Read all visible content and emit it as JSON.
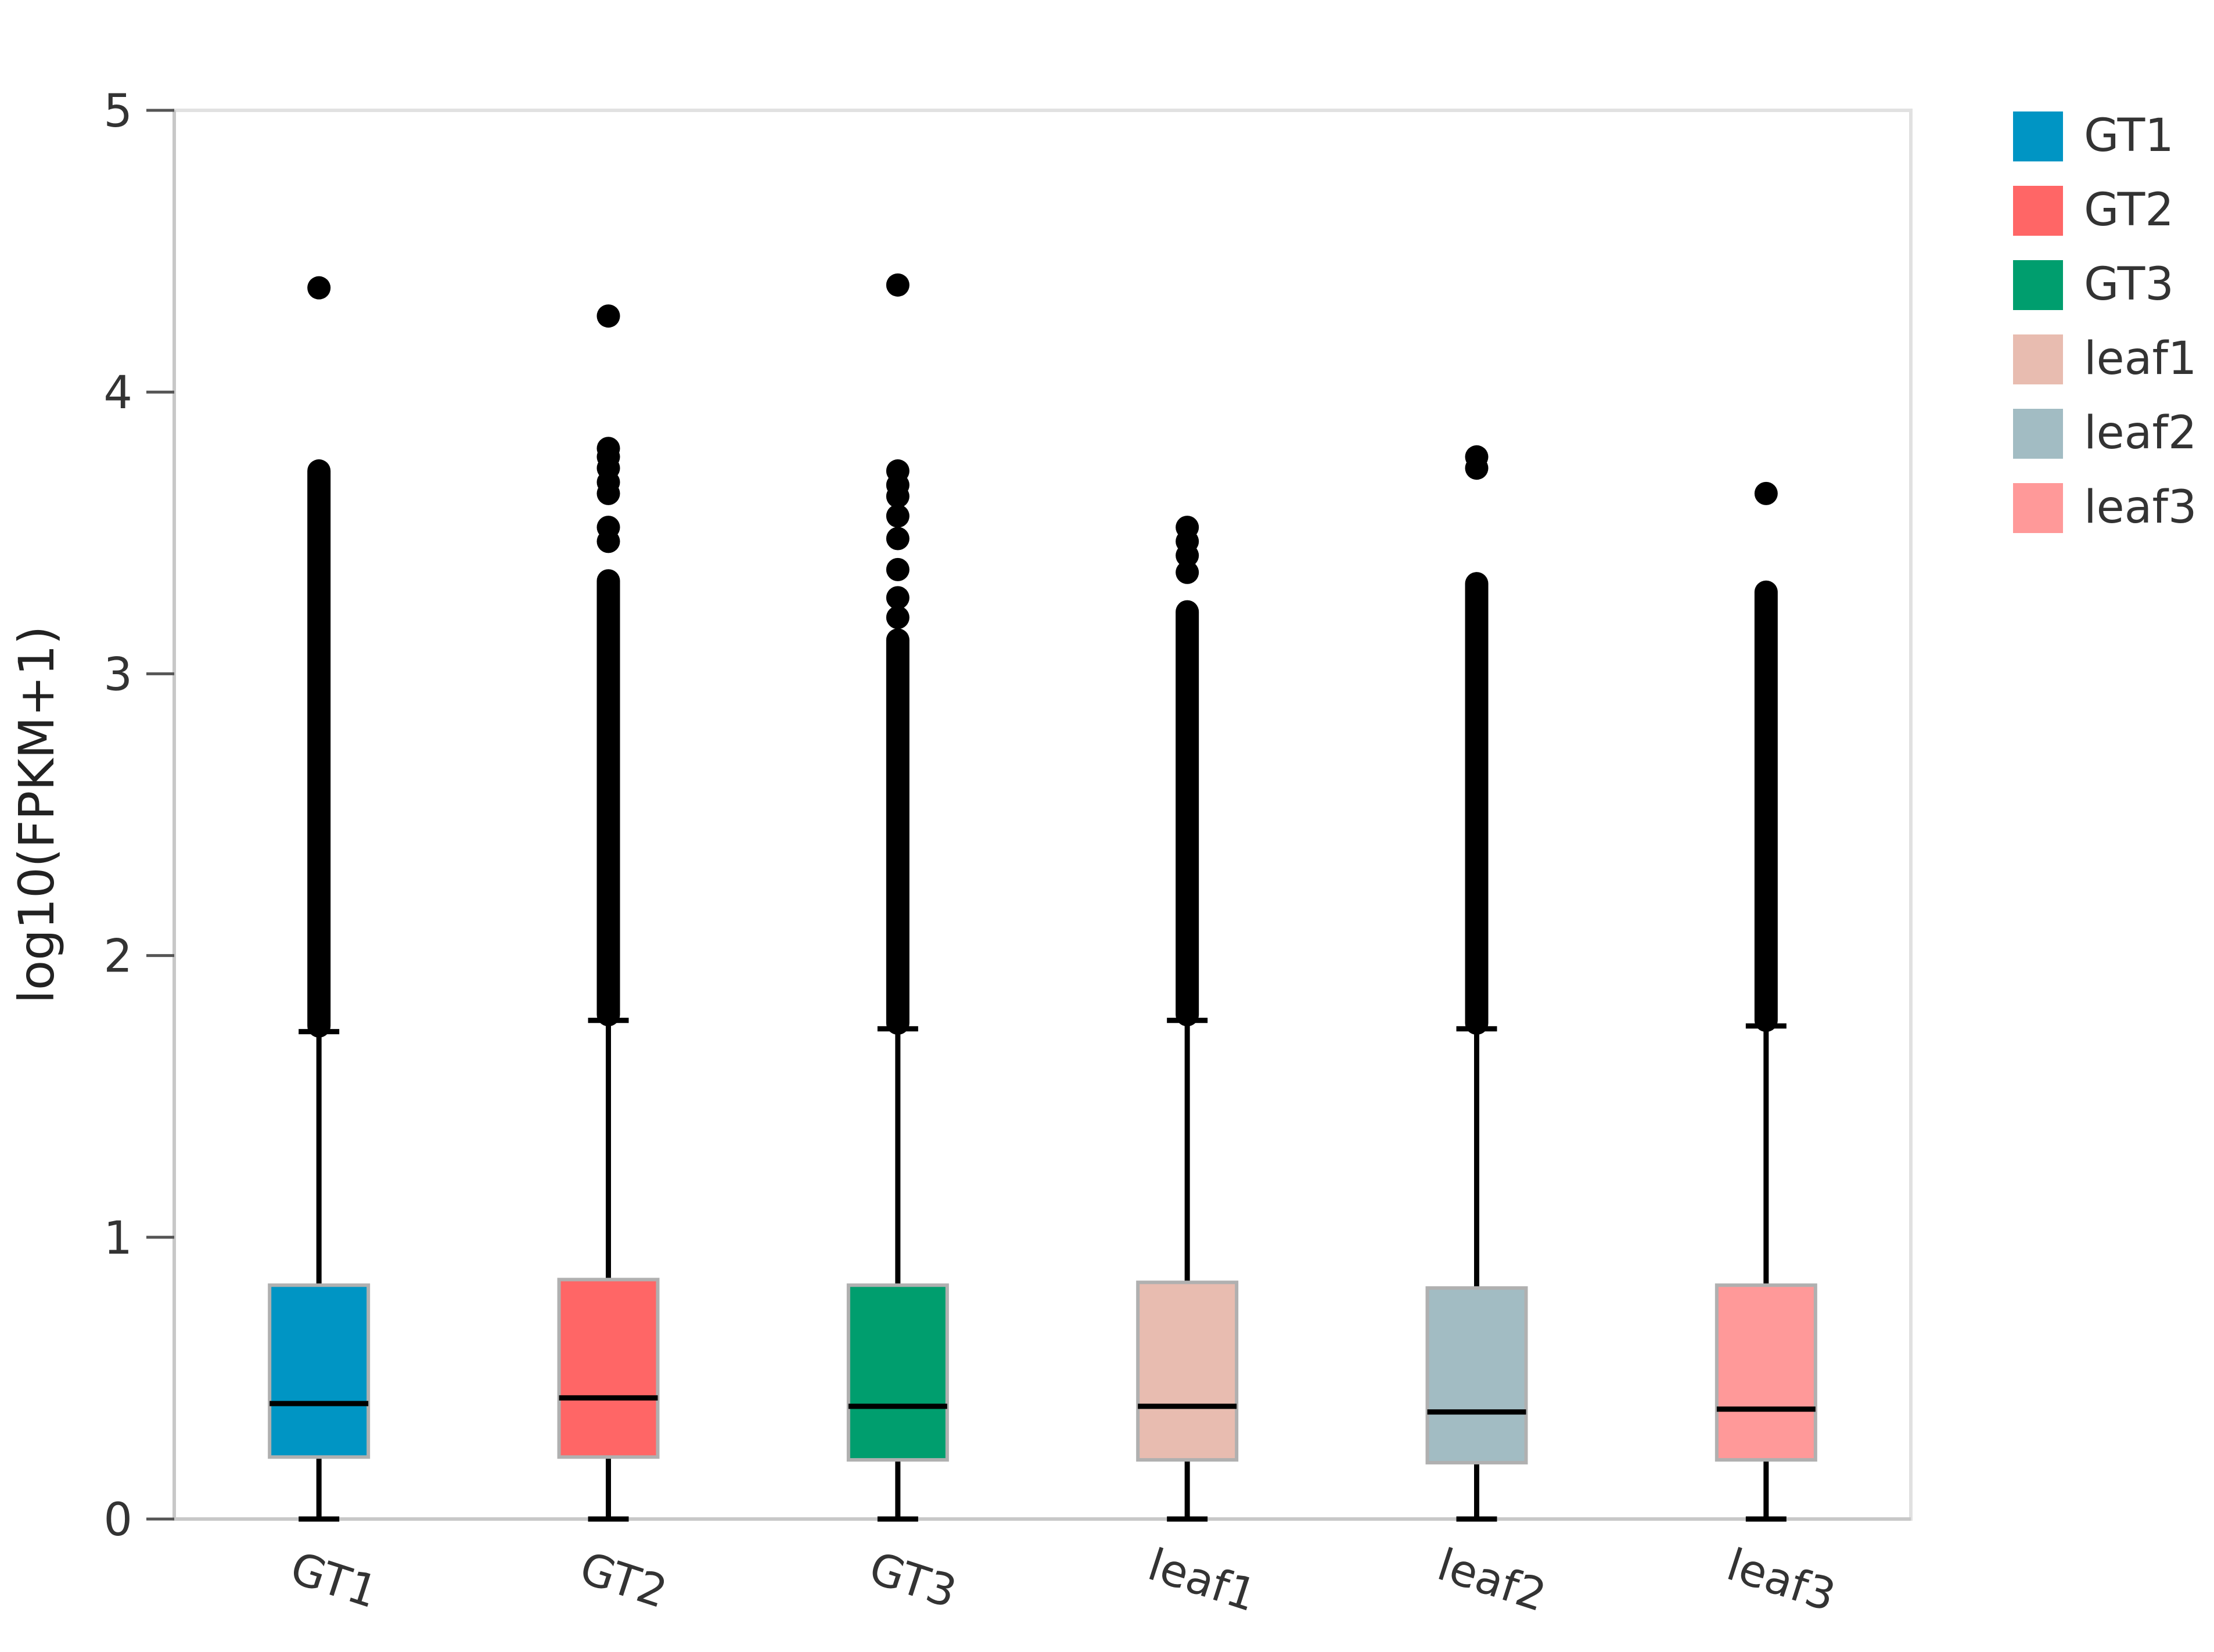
{
  "chart_data": {
    "type": "boxplot",
    "title": "",
    "xlabel": "",
    "ylabel": "log10(FPKM+1)",
    "ylim": [
      0,
      5
    ],
    "yticks": [
      "0",
      "1",
      "2",
      "3",
      "4",
      "5"
    ],
    "grid": false,
    "legend_position": "top-right",
    "categories": [
      "GT1",
      "GT2",
      "GT3",
      "leaf1",
      "leaf2",
      "leaf3"
    ],
    "series": [
      {
        "name": "GT1",
        "color": "#0095C4",
        "whisker_low": 0,
        "q1": 0.22,
        "median": 0.41,
        "q3": 0.83,
        "whisker_high": 1.73,
        "outlier_range": [
          1.75,
          3.72
        ],
        "outliers": [
          4.37
        ]
      },
      {
        "name": "GT2",
        "color": "#FF6666",
        "whisker_low": 0,
        "q1": 0.22,
        "median": 0.43,
        "q3": 0.85,
        "whisker_high": 1.77,
        "outlier_range": [
          1.79,
          3.33
        ],
        "outliers": [
          3.47,
          3.52,
          3.64,
          3.68,
          3.73,
          3.77,
          3.8,
          4.27
        ]
      },
      {
        "name": "GT3",
        "color": "#009E6E",
        "whisker_low": 0,
        "q1": 0.21,
        "median": 0.4,
        "q3": 0.83,
        "whisker_high": 1.74,
        "outlier_range": [
          1.76,
          3.12
        ],
        "outliers": [
          3.2,
          3.27,
          3.37,
          3.48,
          3.56,
          3.63,
          3.67,
          3.72,
          4.38
        ]
      },
      {
        "name": "leaf1",
        "color": "#E8BCB0",
        "whisker_low": 0,
        "q1": 0.21,
        "median": 0.4,
        "q3": 0.84,
        "whisker_high": 1.77,
        "outlier_range": [
          1.79,
          3.22
        ],
        "outliers": [
          3.36,
          3.42,
          3.47,
          3.52
        ]
      },
      {
        "name": "leaf2",
        "color": "#A2BCC3",
        "whisker_low": 0,
        "q1": 0.2,
        "median": 0.38,
        "q3": 0.82,
        "whisker_high": 1.74,
        "outlier_range": [
          1.76,
          3.32
        ],
        "outliers": [
          3.73,
          3.77
        ]
      },
      {
        "name": "leaf3",
        "color": "#FF9999",
        "whisker_low": 0,
        "q1": 0.21,
        "median": 0.39,
        "q3": 0.83,
        "whisker_high": 1.75,
        "outlier_range": [
          1.77,
          3.29
        ],
        "outliers": [
          3.64
        ]
      }
    ]
  }
}
